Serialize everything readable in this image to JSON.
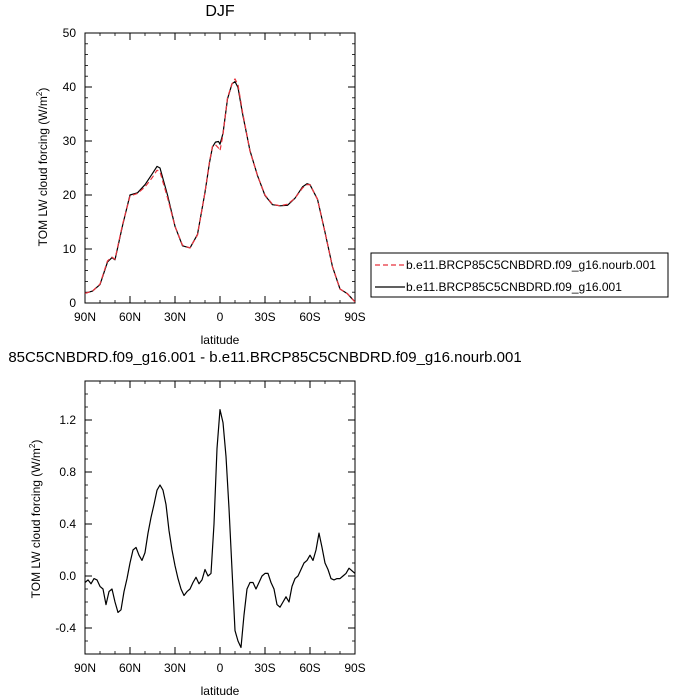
{
  "chart_data": [
    {
      "type": "line",
      "title": "DJF",
      "xlabel": "latitude",
      "ylabel": "TOM LW cloud forcing (W/m²)",
      "ylabel_main": "TOM LW cloud forcing (W/m",
      "ylabel_sup": "2",
      "ylabel_tail": ")",
      "xlim": [
        90,
        -90
      ],
      "ylim": [
        0,
        50
      ],
      "x_ticks": [
        90,
        60,
        30,
        0,
        -30,
        -60,
        -90
      ],
      "x_tick_labels": [
        "90N",
        "60N",
        "30N",
        "0",
        "30S",
        "60S",
        "90S"
      ],
      "y_ticks": [
        0,
        10,
        20,
        30,
        40,
        50
      ],
      "y_tick_labels": [
        "0",
        "10",
        "20",
        "30",
        "40",
        "50"
      ],
      "legend_position": "right",
      "x": [
        90,
        85,
        80,
        75,
        72,
        70,
        65,
        60,
        55,
        50,
        45,
        42,
        40,
        35,
        30,
        25,
        20,
        15,
        10,
        7,
        5,
        3,
        1,
        0,
        -2,
        -5,
        -8,
        -10,
        -12,
        -15,
        -20,
        -25,
        -30,
        -35,
        -40,
        -45,
        -50,
        -55,
        -58,
        -60,
        -65,
        -70,
        -75,
        -80,
        -85,
        -88,
        -90
      ],
      "series": [
        {
          "name": "b.e11.BRCP85C5CNBDRD.f09_g16.nourb.001",
          "color": "#e8323c",
          "dash": "dashed",
          "values": [
            1.8,
            2.2,
            3.5,
            7.8,
            8.5,
            8.1,
            14.5,
            19.8,
            20.3,
            21.5,
            23.3,
            24.6,
            24.3,
            19.5,
            14.2,
            10.7,
            10.2,
            12.6,
            20.5,
            26.2,
            29.0,
            29.3,
            28.7,
            28.2,
            31.2,
            38.0,
            40.6,
            41.5,
            40.4,
            35.4,
            28.1,
            23.6,
            20.0,
            18.3,
            18.0,
            18.3,
            19.4,
            21.3,
            21.9,
            21.9,
            19.2,
            13.1,
            6.7,
            2.6,
            1.7,
            0.8,
            0.2
          ]
        },
        {
          "name": "b.e11.BRCP85C5CNBDRD.f09_g16.001",
          "color": "#000000",
          "dash": "solid",
          "values": [
            1.8,
            2.2,
            3.4,
            7.6,
            8.4,
            8.0,
            14.3,
            20.0,
            20.4,
            21.9,
            24.0,
            25.3,
            25.0,
            20.0,
            14.2,
            10.6,
            10.2,
            12.7,
            20.5,
            26.0,
            28.9,
            29.8,
            29.9,
            29.4,
            31.4,
            37.8,
            40.6,
            41.0,
            39.9,
            35.1,
            28.2,
            23.6,
            19.9,
            18.2,
            18.0,
            18.1,
            19.4,
            21.5,
            22.1,
            21.9,
            19.2,
            13.1,
            6.7,
            2.6,
            1.7,
            0.8,
            0.2
          ]
        }
      ]
    },
    {
      "type": "line",
      "title": "85C5CNBDRD.f09_g16.001 - b.e11.BRCP85C5CNBDRD.f09_g16.nourb.001",
      "xlabel": "latitude",
      "ylabel": "TOM LW cloud forcing (W/m²)",
      "ylabel_main": "TOM LW cloud forcing (W/m",
      "ylabel_sup": "2",
      "ylabel_tail": ")",
      "xlim": [
        90,
        -90
      ],
      "ylim": [
        -0.6,
        1.5
      ],
      "x_ticks": [
        90,
        60,
        30,
        0,
        -30,
        -60,
        -90
      ],
      "x_tick_labels": [
        "90N",
        "60N",
        "30N",
        "0",
        "30S",
        "60S",
        "90S"
      ],
      "y_ticks": [
        -0.4,
        0,
        0.4,
        0.8,
        1.2
      ],
      "y_tick_labels": [
        "-0.4",
        "0.0",
        "0.4",
        "0.8",
        "1.2"
      ],
      "x": [
        90,
        88,
        86,
        84,
        82,
        80,
        78,
        76,
        74,
        72,
        70,
        68,
        66,
        64,
        62,
        60,
        58,
        56,
        54,
        52,
        50,
        48,
        46,
        44,
        42,
        40,
        38,
        36,
        34,
        32,
        30,
        28,
        26,
        24,
        22,
        20,
        18,
        16,
        14,
        12,
        10,
        8,
        6,
        4,
        2,
        0,
        -2,
        -4,
        -6,
        -8,
        -10,
        -12,
        -14,
        -16,
        -18,
        -20,
        -22,
        -24,
        -26,
        -28,
        -30,
        -32,
        -34,
        -36,
        -38,
        -40,
        -42,
        -44,
        -46,
        -48,
        -50,
        -52,
        -54,
        -56,
        -58,
        -60,
        -62,
        -64,
        -66,
        -68,
        -70,
        -72,
        -74,
        -76,
        -78,
        -80,
        -82,
        -84,
        -86,
        -88,
        -90
      ],
      "series": [
        {
          "name": "",
          "color": "#000000",
          "dash": "solid",
          "values": [
            -0.05,
            -0.03,
            -0.06,
            -0.02,
            -0.03,
            -0.08,
            -0.1,
            -0.22,
            -0.12,
            -0.1,
            -0.2,
            -0.28,
            -0.26,
            -0.12,
            -0.02,
            0.1,
            0.2,
            0.22,
            0.16,
            0.12,
            0.18,
            0.33,
            0.45,
            0.55,
            0.66,
            0.7,
            0.66,
            0.55,
            0.35,
            0.2,
            0.08,
            -0.02,
            -0.1,
            -0.15,
            -0.12,
            -0.1,
            -0.05,
            -0.01,
            -0.06,
            -0.03,
            0.05,
            0.0,
            0.02,
            0.4,
            0.98,
            1.28,
            1.18,
            0.92,
            0.52,
            0.05,
            -0.42,
            -0.5,
            -0.55,
            -0.3,
            -0.1,
            -0.05,
            -0.05,
            -0.1,
            -0.05,
            0.0,
            0.02,
            0.02,
            -0.05,
            -0.1,
            -0.22,
            -0.24,
            -0.2,
            -0.16,
            -0.2,
            -0.08,
            -0.02,
            0.0,
            0.05,
            0.1,
            0.12,
            0.16,
            0.12,
            0.2,
            0.33,
            0.22,
            0.1,
            0.05,
            -0.02,
            -0.03,
            -0.02,
            -0.02,
            0.0,
            0.02,
            0.06,
            0.04,
            0.02
          ]
        }
      ]
    }
  ]
}
